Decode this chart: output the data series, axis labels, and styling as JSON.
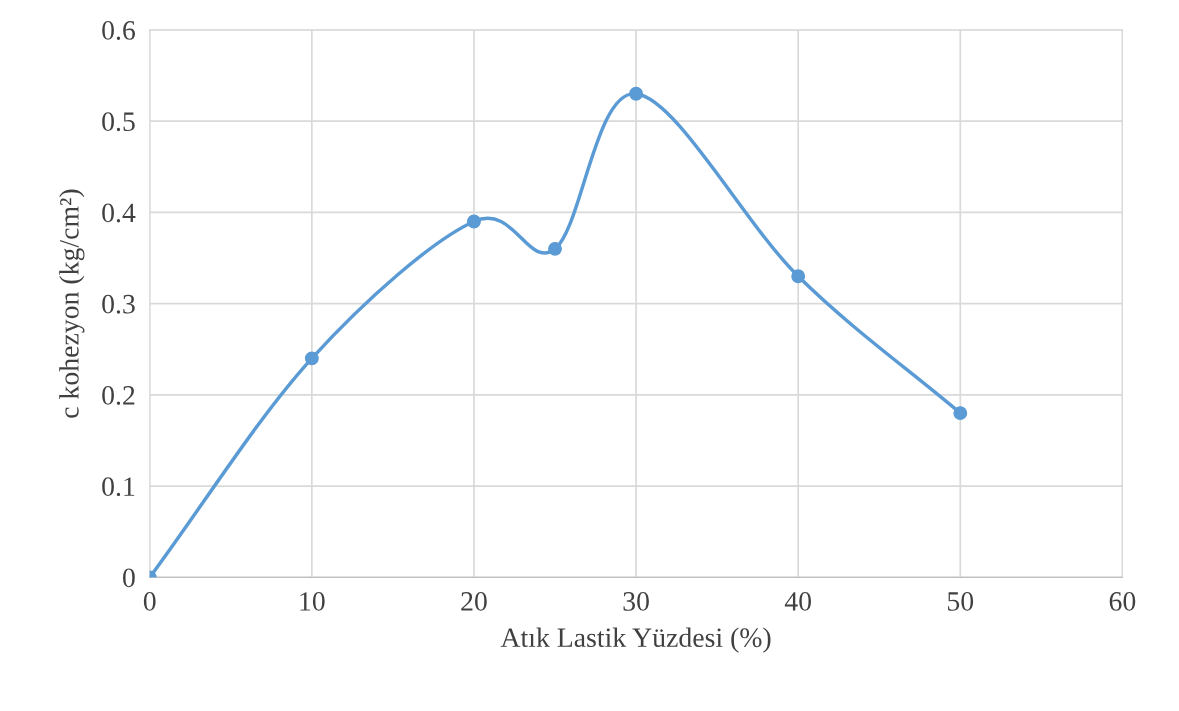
{
  "chart_data": {
    "type": "line",
    "xlabel": "Atık Lastik Yüzdesi (%)",
    "ylabel": "c kohezyon (kg/cm²)",
    "x": [
      0,
      10,
      20,
      25,
      30,
      40,
      50
    ],
    "series": [
      {
        "color": "#5b9bd5",
        "values": [
          0,
          0.24,
          0.39,
          0.36,
          0.53,
          0.33,
          0.18
        ]
      }
    ],
    "xlim": [
      0,
      60
    ],
    "xticks": [
      0,
      10,
      20,
      30,
      40,
      50,
      60
    ],
    "ylim": [
      0,
      0.6
    ],
    "yticks": [
      0,
      0.1,
      0.2,
      0.3,
      0.4,
      0.5,
      0.6
    ],
    "grid": true,
    "marker": "circle",
    "line_style": "solid"
  }
}
